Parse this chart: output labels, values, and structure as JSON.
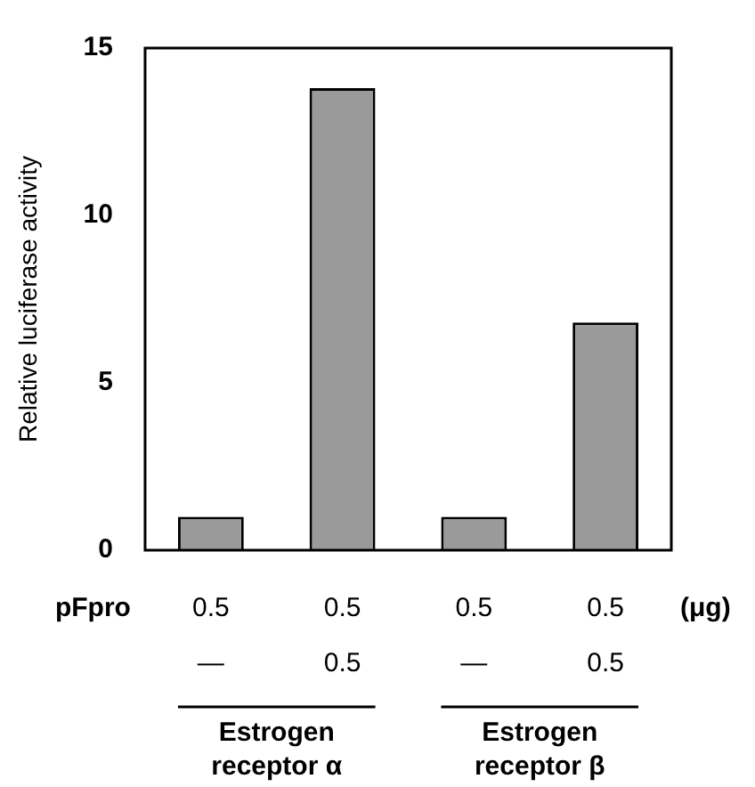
{
  "chart_data": {
    "type": "bar",
    "ylabel": "Relative luciferase activity",
    "categories": [
      "0.5\n—",
      "0.5\n0.5",
      "0.5\n—",
      "0.5\n0.5"
    ],
    "values": [
      1.0,
      13.8,
      1.0,
      6.8
    ],
    "color": "#9a9a9a",
    "ylim": [
      0,
      15
    ],
    "yticks": [
      0,
      5,
      10,
      15
    ],
    "grid": false,
    "legend": false,
    "annotations": [
      "pFpro",
      "(μg)",
      "Estrogen receptor α",
      "Estrogen receptor β"
    ]
  }
}
